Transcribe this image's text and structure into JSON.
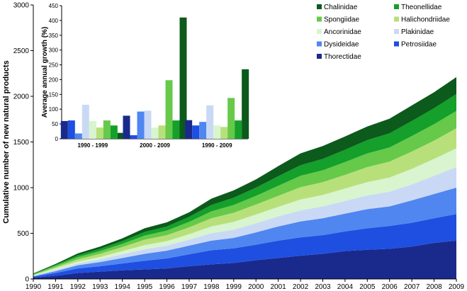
{
  "chart_data": [
    {
      "type": "area",
      "stacked": true,
      "ylabel": "Cumulative number of new natural products",
      "xlabel": "",
      "ylim": [
        0,
        3000
      ],
      "yticks": [
        0,
        500,
        1000,
        1500,
        2000,
        2500,
        3000
      ],
      "x": [
        "1990",
        "1991",
        "1992",
        "1993",
        "1994",
        "1995",
        "1996",
        "1997",
        "1998",
        "1999",
        "2000",
        "2001",
        "2002",
        "2003",
        "2004",
        "2005",
        "2006",
        "2007",
        "2008",
        "2009"
      ],
      "series": [
        {
          "name": "Thorectidae",
          "color": "#1a2a8c",
          "values": [
            15,
            35,
            65,
            80,
            95,
            105,
            115,
            140,
            160,
            175,
            205,
            230,
            255,
            275,
            305,
            320,
            330,
            355,
            395,
            420
          ]
        },
        {
          "name": "Petrosiidae",
          "color": "#1f4fe0",
          "values": [
            10,
            30,
            50,
            60,
            75,
            95,
            110,
            130,
            155,
            160,
            170,
            190,
            200,
            205,
            215,
            235,
            250,
            260,
            270,
            290
          ]
        },
        {
          "name": "Dysideidae",
          "color": "#4f86f0",
          "values": [
            5,
            20,
            35,
            45,
            60,
            75,
            85,
            95,
            105,
            115,
            135,
            155,
            175,
            185,
            195,
            210,
            215,
            245,
            265,
            290
          ]
        },
        {
          "name": "Plakinidae",
          "color": "#c9d9f5",
          "values": [
            5,
            15,
            20,
            30,
            40,
            50,
            55,
            65,
            80,
            90,
            100,
            110,
            120,
            130,
            140,
            150,
            160,
            175,
            200,
            225
          ]
        },
        {
          "name": "Ancorinidae",
          "color": "#d8f5cf",
          "values": [
            5,
            15,
            20,
            25,
            35,
            45,
            50,
            60,
            75,
            85,
            95,
            105,
            120,
            125,
            135,
            145,
            155,
            170,
            185,
            205
          ]
        },
        {
          "name": "Halichondriidae",
          "color": "#b8e07a",
          "values": [
            5,
            15,
            25,
            35,
            45,
            60,
            65,
            75,
            90,
            100,
            110,
            120,
            135,
            140,
            150,
            165,
            175,
            190,
            200,
            220
          ]
        },
        {
          "name": "Spongiidae",
          "color": "#66c94a",
          "values": [
            5,
            15,
            25,
            30,
            35,
            45,
            50,
            60,
            75,
            85,
            95,
            110,
            125,
            130,
            140,
            150,
            155,
            170,
            180,
            190
          ]
        },
        {
          "name": "Theonellidae",
          "color": "#14a02a",
          "values": [
            5,
            10,
            20,
            25,
            30,
            40,
            45,
            55,
            70,
            80,
            90,
            105,
            115,
            125,
            135,
            145,
            155,
            165,
            175,
            185
          ]
        },
        {
          "name": "Chalinidae",
          "color": "#0c5a1c",
          "values": [
            5,
            10,
            20,
            25,
            30,
            40,
            45,
            50,
            70,
            80,
            90,
            110,
            130,
            140,
            145,
            150,
            160,
            170,
            175,
            185
          ]
        }
      ]
    },
    {
      "type": "bar",
      "ylabel": "Average annual growth (%)",
      "ylim": [
        0,
        450
      ],
      "yticks": [
        0,
        50,
        100,
        150,
        200,
        250,
        300,
        350,
        400,
        450
      ],
      "categories": [
        "1990 - 1999",
        "2000 - 2009",
        "1990 - 2009"
      ],
      "series": [
        {
          "name": "Thorectidae",
          "values": [
            60,
            78,
            63
          ]
        },
        {
          "name": "Petrosiidae",
          "values": [
            62,
            12,
            45
          ]
        },
        {
          "name": "Dysideidae",
          "values": [
            18,
            92,
            57
          ]
        },
        {
          "name": "Plakinidae",
          "values": [
            115,
            95,
            113
          ]
        },
        {
          "name": "Ancorinidae",
          "values": [
            60,
            38,
            45
          ]
        },
        {
          "name": "Halichondriidae",
          "values": [
            38,
            45,
            40
          ]
        },
        {
          "name": "Spongiidae",
          "values": [
            62,
            198,
            138
          ]
        },
        {
          "name": "Theonellidae",
          "values": [
            45,
            62,
            62
          ]
        },
        {
          "name": "Chalinidae",
          "values": [
            20,
            410,
            235
          ]
        }
      ]
    }
  ],
  "legend": [
    {
      "label": "Chalinidae",
      "color": "#0c5a1c"
    },
    {
      "label": "Theonellidae",
      "color": "#14a02a"
    },
    {
      "label": "Spongiidae",
      "color": "#66c94a"
    },
    {
      "label": "Halichondriidae",
      "color": "#b8e07a"
    },
    {
      "label": "Ancorinidae",
      "color": "#d8f5cf"
    },
    {
      "label": "Plakinidae",
      "color": "#c9d9f5"
    },
    {
      "label": "Dysideidae",
      "color": "#4f86f0"
    },
    {
      "label": "Petrosiidae",
      "color": "#1f4fe0"
    },
    {
      "label": "Thorectidae",
      "color": "#1a2a8c"
    }
  ]
}
